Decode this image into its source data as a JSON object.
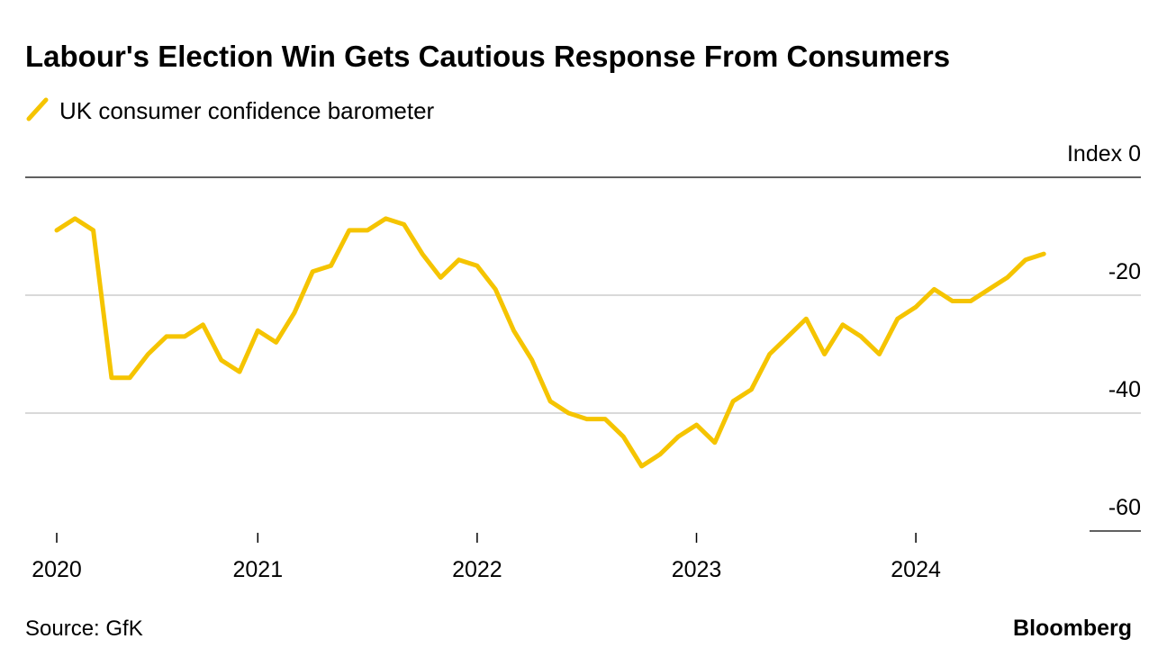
{
  "chart_data": {
    "type": "line",
    "title": "Labour's Election Win Gets Cautious Response From Consumers",
    "source": "Source: GfK",
    "brand": "Bloomberg",
    "categories": [
      "2020",
      null,
      null,
      null,
      null,
      null,
      null,
      null,
      null,
      null,
      null,
      "2021",
      null,
      null,
      null,
      null,
      null,
      null,
      null,
      null,
      null,
      null,
      null,
      "2022",
      null,
      null,
      null,
      null,
      null,
      null,
      null,
      null,
      null,
      null,
      null,
      "2023",
      null,
      null,
      null,
      null,
      null,
      null,
      null,
      null,
      null,
      null,
      null,
      "2024",
      null,
      null,
      null,
      null,
      null,
      null,
      null
    ],
    "series": [
      {
        "name": "UK consumer confidence barometer",
        "color": "#f5c400",
        "values": [
          -9,
          -7,
          -9,
          -34,
          -34,
          -30,
          -27,
          -27,
          -25,
          -31,
          -33,
          -26,
          -28,
          -23,
          -16,
          -15,
          -9,
          -9,
          -7,
          -8,
          -13,
          -17,
          -14,
          -15,
          -19,
          -26,
          -31,
          -38,
          -40,
          -41,
          -41,
          -44,
          -49,
          -47,
          -44,
          -42,
          -45,
          -38,
          -36,
          -30,
          -27,
          -24,
          -30,
          -25,
          -27,
          -30,
          -24,
          -22,
          -19,
          -21,
          -21,
          -19,
          -17,
          -14,
          -13
        ]
      }
    ],
    "ylim": [
      -60,
      0
    ],
    "yticks": [
      {
        "value": 0,
        "label": "Index 0"
      },
      -20,
      -40,
      -60
    ]
  }
}
